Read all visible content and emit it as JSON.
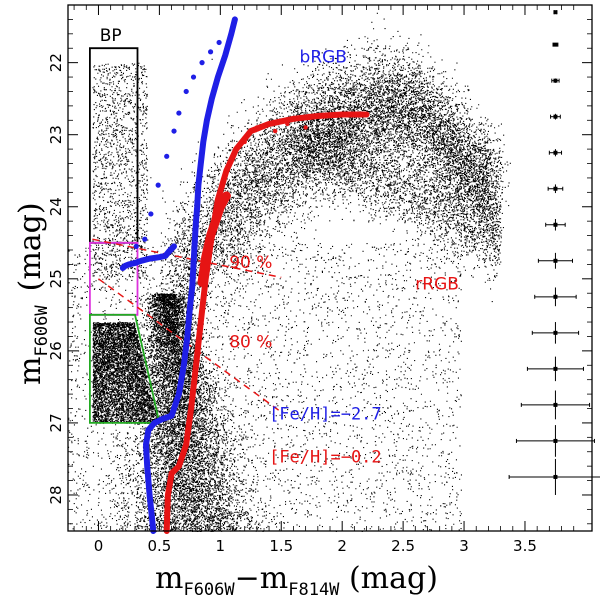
{
  "chart_data": {
    "type": "scatter",
    "title": "",
    "xlabel": {
      "main": "m",
      "sub1": "F606W",
      "minus": "−m",
      "sub2": "F814W",
      "unit": " (mag)"
    },
    "ylabel": {
      "main": "m",
      "sub": "F606W",
      "unit": "(mag)"
    },
    "xlim": [
      -0.25,
      4.05
    ],
    "ylim": [
      28.5,
      21.2
    ],
    "x_ticks": [
      0,
      0.5,
      1,
      1.5,
      2,
      2.5,
      3,
      3.5
    ],
    "x_tick_labels": [
      "0",
      "0.5",
      "1",
      "1.5",
      "2",
      "2.5",
      "3",
      "3.5"
    ],
    "y_ticks": [
      22,
      23,
      24,
      25,
      26,
      27,
      28
    ],
    "y_tick_labels": [
      "22",
      "23",
      "24",
      "25",
      "26",
      "27",
      "28"
    ],
    "colors": {
      "blue": "#1f1fe6",
      "red": "#e61414",
      "bp_box": "#000000",
      "magenta_box": "#dd33dd",
      "green_box": "#22aa22",
      "points": "#000000"
    },
    "series": [
      {
        "name": "[Fe/H]=-2.7 isochrone",
        "color": "blue",
        "x": [
          0.45,
          0.42,
          0.4,
          0.39,
          0.41,
          0.46,
          0.52,
          0.6,
          0.66,
          0.7,
          0.73,
          0.75,
          0.77,
          0.78,
          0.79,
          0.8,
          0.81,
          0.82,
          0.84,
          0.86,
          0.89,
          0.93,
          0.98,
          1.04,
          1.09,
          1.12
        ],
        "y": [
          28.5,
          28.0,
          27.6,
          27.3,
          27.1,
          27.0,
          26.95,
          26.9,
          26.6,
          26.2,
          25.8,
          25.4,
          25.1,
          24.8,
          24.5,
          24.2,
          24.0,
          23.7,
          23.4,
          23.1,
          22.8,
          22.5,
          22.2,
          21.9,
          21.6,
          21.4
        ]
      },
      {
        "name": "[Fe/H]=-2.7 HB",
        "color": "blue",
        "x": [
          0.2,
          0.22,
          0.25,
          0.3,
          0.35,
          0.42,
          0.5,
          0.55,
          0.58,
          0.62
        ],
        "y": [
          24.85,
          24.82,
          24.8,
          24.78,
          24.75,
          24.72,
          24.7,
          24.68,
          24.62,
          24.55
        ]
      },
      {
        "name": "[Fe/H]=-2.7 AGB points",
        "color": "blue",
        "x": [
          0.31,
          0.38,
          0.43,
          0.49,
          0.56,
          0.62,
          0.66,
          0.72,
          0.78,
          0.85,
          0.92,
          0.99
        ],
        "y": [
          24.55,
          24.45,
          24.1,
          23.7,
          23.3,
          22.95,
          22.7,
          22.4,
          22.2,
          22.0,
          21.85,
          21.72
        ]
      },
      {
        "name": "[Fe/H]=-0.2 isochrone",
        "color": "red",
        "x": [
          0.56,
          0.57,
          0.6,
          0.66,
          0.72,
          0.76,
          0.8,
          0.84,
          0.88,
          0.93,
          0.98,
          1.05,
          1.13,
          1.25,
          1.4,
          1.6,
          1.8,
          2.0,
          2.2
        ],
        "y": [
          28.5,
          28.0,
          27.7,
          27.6,
          27.3,
          26.8,
          26.2,
          25.6,
          25.0,
          24.4,
          23.9,
          23.5,
          23.2,
          22.95,
          22.85,
          22.78,
          22.74,
          22.72,
          22.72
        ]
      },
      {
        "name": "[Fe/H]=-0.2 clump",
        "color": "red",
        "x": [
          0.85,
          0.88,
          0.92,
          0.96,
          1.0,
          1.05
        ],
        "y": [
          25.05,
          24.7,
          24.4,
          24.2,
          24.0,
          23.85
        ]
      }
    ],
    "error_bars": {
      "x": 3.75,
      "y": [
        21.3,
        21.75,
        22.25,
        22.75,
        23.25,
        23.75,
        24.25,
        24.75,
        25.25,
        25.75,
        26.25,
        26.75,
        27.25,
        27.75
      ],
      "xerr": [
        0.01,
        0.02,
        0.03,
        0.04,
        0.05,
        0.06,
        0.08,
        0.14,
        0.17,
        0.19,
        0.23,
        0.28,
        0.32,
        0.38
      ],
      "yerr": [
        0.02,
        0.02,
        0.03,
        0.04,
        0.05,
        0.06,
        0.08,
        0.11,
        0.13,
        0.15,
        0.17,
        0.2,
        0.22,
        0.25
      ]
    },
    "boxes": [
      {
        "name": "BP",
        "color": "bp_box",
        "x": [
          -0.07,
          -0.07,
          0.32,
          0.32
        ],
        "y": [
          24.5,
          21.8,
          21.8,
          24.5
        ]
      },
      {
        "name": "magenta",
        "color": "magenta_box",
        "x": [
          -0.07,
          -0.07,
          0.32,
          0.32
        ],
        "y": [
          25.5,
          24.5,
          24.5,
          25.5
        ]
      },
      {
        "name": "green",
        "color": "green_box",
        "x": [
          -0.07,
          -0.07,
          0.3,
          0.5
        ],
        "y": [
          27.0,
          25.5,
          25.5,
          27.0
        ]
      }
    ],
    "completeness_lines": [
      {
        "label": "90 %",
        "x": [
          -0.05,
          1.5
        ],
        "y": [
          24.45,
          24.98
        ]
      },
      {
        "label": "80 %",
        "x": [
          0.0,
          1.5
        ],
        "y": [
          25.0,
          26.85
        ]
      }
    ],
    "annotations": {
      "bp": "BP",
      "brgb": "bRGB",
      "rrgb": "rRGB",
      "c90": "90 %",
      "c80": "80 %",
      "feh_blue": "[Fe/H]=−2.7",
      "feh_red": "[Fe/H]=−0.2"
    }
  }
}
